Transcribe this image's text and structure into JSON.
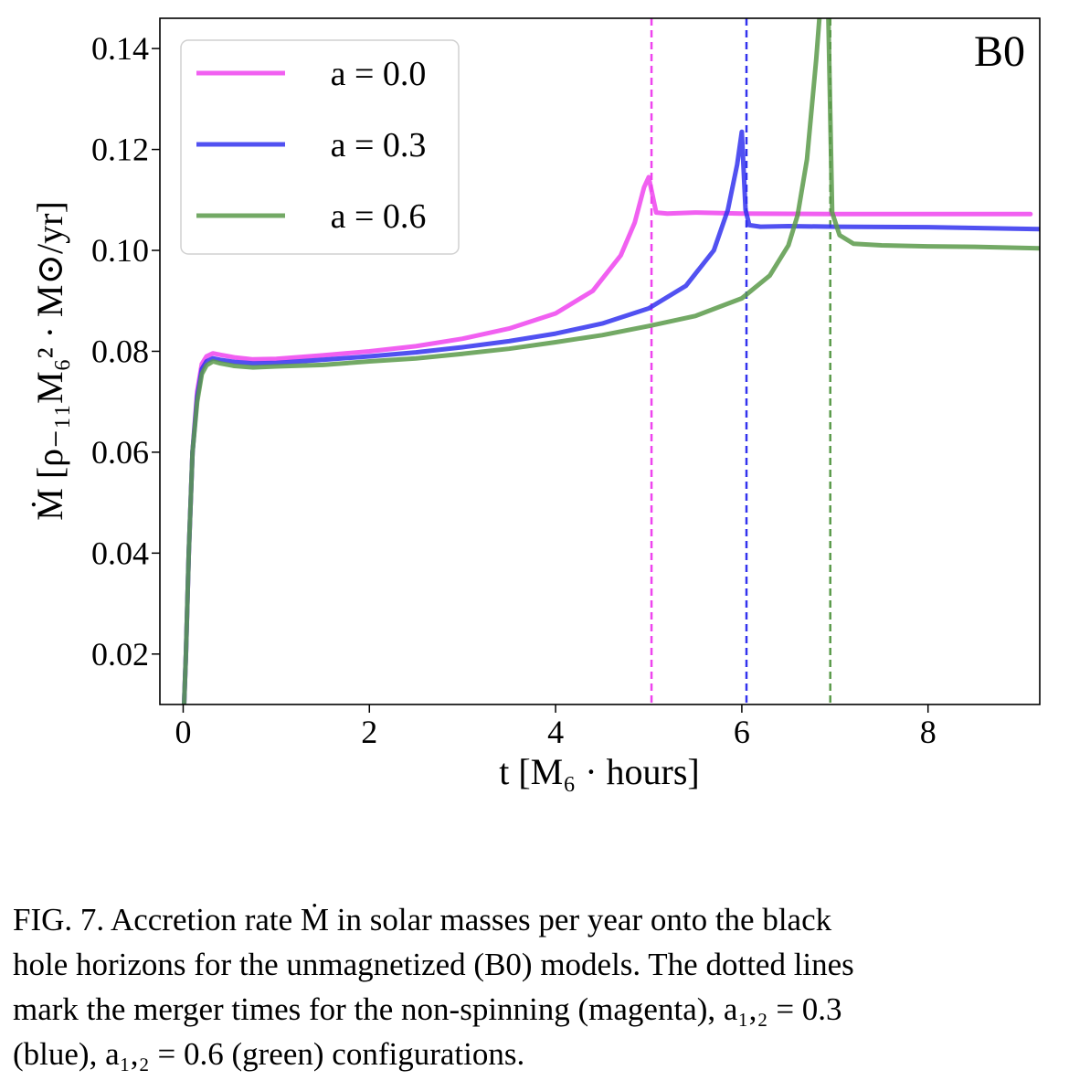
{
  "chart_data": {
    "type": "line",
    "panel_label": "B0",
    "xlabel": "t  [M₆ · hours]",
    "ylabel": "Ṁ  [ρ₋₁₁M₆² · M⊙/yr]",
    "xlim": [
      -0.25,
      9.2
    ],
    "ylim": [
      0.01,
      0.146
    ],
    "x_ticks": [
      0,
      2,
      4,
      6,
      8
    ],
    "x_tick_labels": [
      "0",
      "2",
      "4",
      "6",
      "8"
    ],
    "y_ticks": [
      0.02,
      0.04,
      0.06,
      0.08,
      0.1,
      0.12,
      0.14
    ],
    "y_tick_labels": [
      "0.02",
      "0.04",
      "0.06",
      "0.08",
      "0.10",
      "0.12",
      "0.14"
    ],
    "grid": false,
    "legend_position": "top-left",
    "series": [
      {
        "name": "a = 0.0",
        "color": "#ee44ee",
        "merger_time": 5.03,
        "points": [
          [
            0.0,
            0.005
          ],
          [
            0.03,
            0.02
          ],
          [
            0.06,
            0.04
          ],
          [
            0.1,
            0.06
          ],
          [
            0.15,
            0.072
          ],
          [
            0.2,
            0.0775
          ],
          [
            0.25,
            0.079
          ],
          [
            0.32,
            0.0796
          ],
          [
            0.4,
            0.0793
          ],
          [
            0.55,
            0.0788
          ],
          [
            0.75,
            0.0784
          ],
          [
            1.0,
            0.0785
          ],
          [
            1.5,
            0.0792
          ],
          [
            2.0,
            0.08
          ],
          [
            2.5,
            0.081
          ],
          [
            3.0,
            0.0825
          ],
          [
            3.5,
            0.0845
          ],
          [
            4.0,
            0.0875
          ],
          [
            4.4,
            0.092
          ],
          [
            4.7,
            0.099
          ],
          [
            4.85,
            0.1055
          ],
          [
            4.95,
            0.1125
          ],
          [
            5.0,
            0.1145
          ],
          [
            5.04,
            0.111
          ],
          [
            5.08,
            0.1075
          ],
          [
            5.2,
            0.1073
          ],
          [
            5.5,
            0.1075
          ],
          [
            6.0,
            0.1073
          ],
          [
            7.0,
            0.1072
          ],
          [
            8.0,
            0.1072
          ],
          [
            9.1,
            0.1072
          ]
        ]
      },
      {
        "name": "a = 0.3",
        "color": "#3333ee",
        "merger_time": 6.05,
        "points": [
          [
            0.0,
            0.005
          ],
          [
            0.03,
            0.02
          ],
          [
            0.06,
            0.04
          ],
          [
            0.1,
            0.06
          ],
          [
            0.15,
            0.071
          ],
          [
            0.2,
            0.0765
          ],
          [
            0.25,
            0.078
          ],
          [
            0.32,
            0.0786
          ],
          [
            0.4,
            0.0783
          ],
          [
            0.55,
            0.0779
          ],
          [
            0.75,
            0.0776
          ],
          [
            1.0,
            0.0777
          ],
          [
            1.5,
            0.0783
          ],
          [
            2.0,
            0.079
          ],
          [
            2.5,
            0.0798
          ],
          [
            3.0,
            0.0808
          ],
          [
            3.5,
            0.082
          ],
          [
            4.0,
            0.0835
          ],
          [
            4.5,
            0.0855
          ],
          [
            5.0,
            0.0885
          ],
          [
            5.4,
            0.093
          ],
          [
            5.7,
            0.1
          ],
          [
            5.85,
            0.108
          ],
          [
            5.95,
            0.117
          ],
          [
            6.0,
            0.1235
          ],
          [
            6.04,
            0.108
          ],
          [
            6.08,
            0.105
          ],
          [
            6.2,
            0.1047
          ],
          [
            6.5,
            0.1048
          ],
          [
            7.0,
            0.1047
          ],
          [
            8.0,
            0.1046
          ],
          [
            9.2,
            0.1042
          ]
        ]
      },
      {
        "name": "a = 0.6",
        "color": "#5a9a4a",
        "merger_time": 6.95,
        "points": [
          [
            0.0,
            0.005
          ],
          [
            0.03,
            0.02
          ],
          [
            0.06,
            0.04
          ],
          [
            0.1,
            0.06
          ],
          [
            0.15,
            0.07
          ],
          [
            0.2,
            0.0755
          ],
          [
            0.25,
            0.0772
          ],
          [
            0.32,
            0.078
          ],
          [
            0.4,
            0.0776
          ],
          [
            0.55,
            0.0771
          ],
          [
            0.75,
            0.0768
          ],
          [
            1.0,
            0.077
          ],
          [
            1.5,
            0.0773
          ],
          [
            2.0,
            0.078
          ],
          [
            2.5,
            0.0786
          ],
          [
            3.0,
            0.0795
          ],
          [
            3.5,
            0.0805
          ],
          [
            4.0,
            0.0818
          ],
          [
            4.5,
            0.0832
          ],
          [
            5.0,
            0.085
          ],
          [
            5.5,
            0.087
          ],
          [
            6.0,
            0.0905
          ],
          [
            6.3,
            0.095
          ],
          [
            6.5,
            0.101
          ],
          [
            6.6,
            0.107
          ],
          [
            6.7,
            0.118
          ],
          [
            6.8,
            0.138
          ],
          [
            6.85,
            0.15
          ],
          [
            6.88,
            0.162
          ],
          [
            6.92,
            0.155
          ],
          [
            6.97,
            0.1075
          ],
          [
            7.05,
            0.103
          ],
          [
            7.2,
            0.1013
          ],
          [
            7.5,
            0.101
          ],
          [
            8.0,
            0.1008
          ],
          [
            8.5,
            0.1007
          ],
          [
            9.2,
            0.1004
          ]
        ]
      }
    ]
  },
  "caption": {
    "line1": "FIG. 7.  Accretion rate Ṁ in solar masses per year onto the black",
    "line2": "hole horizons for the unmagnetized (B0) models.  The dotted lines",
    "line3": "mark the merger times for the non-spinning (magenta), a₁,₂ = 0.3",
    "line4": "(blue), a₁,₂ = 0.6 (green) configurations."
  }
}
